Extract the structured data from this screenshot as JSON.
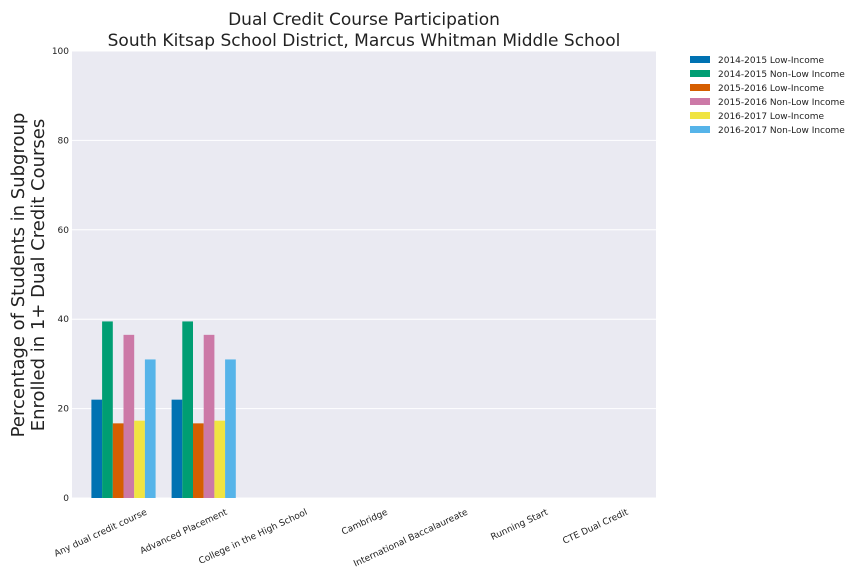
{
  "chart_data": {
    "type": "bar",
    "title": [
      "Dual Credit Course Participation",
      "South Kitsap School District, Marcus Whitman Middle School"
    ],
    "ylabel": [
      "Percentage of Students in Subgroup",
      "Enrolled in 1+ Dual Credit Courses"
    ],
    "xlabel": "",
    "ylim": [
      0,
      100
    ],
    "yticks": [
      0,
      20,
      40,
      60,
      80,
      100
    ],
    "grid": true,
    "legend_position": "right-top-outside",
    "background": "#eaeaf2",
    "categories": [
      "Any dual credit course",
      "Advanced Placement",
      "College in the High School",
      "Cambridge",
      "International Baccalaureate",
      "Running Start",
      "CTE Dual Credit"
    ],
    "series": [
      {
        "name": "2014-2015 Low-Income",
        "color": "#0072b2",
        "values": [
          22,
          22,
          0,
          0,
          0,
          0,
          0
        ]
      },
      {
        "name": "2014-2015 Non-Low Income",
        "color": "#009e73",
        "values": [
          39.5,
          39.5,
          0,
          0,
          0,
          0,
          0
        ]
      },
      {
        "name": "2015-2016 Low-Income",
        "color": "#d55e00",
        "values": [
          16.7,
          16.7,
          0,
          0,
          0,
          0,
          0
        ]
      },
      {
        "name": "2015-2016 Non-Low Income",
        "color": "#cc79a7",
        "values": [
          36.5,
          36.5,
          0,
          0,
          0,
          0,
          0
        ]
      },
      {
        "name": "2016-2017 Low-Income",
        "color": "#f0e442",
        "values": [
          17.3,
          17.3,
          0,
          0,
          0,
          0,
          0
        ]
      },
      {
        "name": "2016-2017 Non-Low Income",
        "color": "#56b4e9",
        "values": [
          31,
          31,
          0,
          0,
          0,
          0,
          0
        ]
      }
    ]
  }
}
